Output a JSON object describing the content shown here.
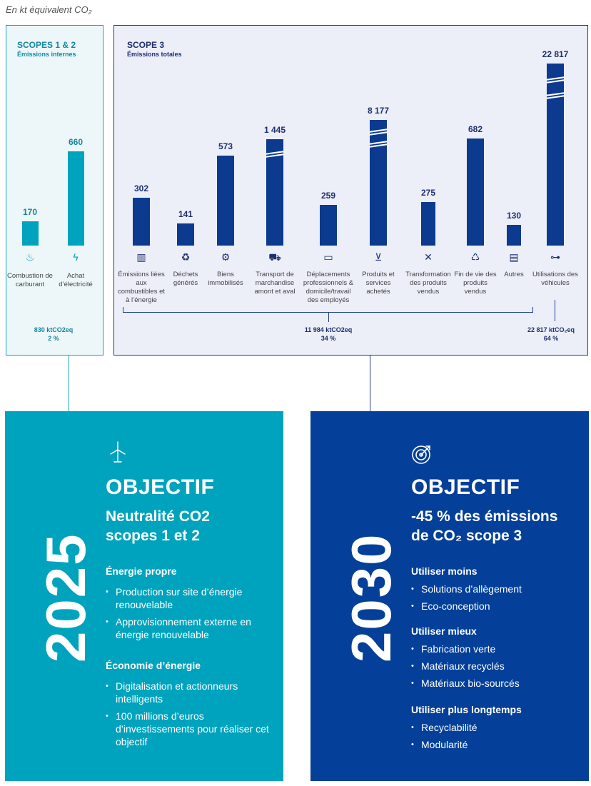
{
  "unit_label": "En kt équivalent CO₂",
  "scope12": {
    "title": "SCOPES 1 & 2",
    "subtitle": "Émissions internes",
    "total_value": "830 ktCO2eq",
    "total_pct": "2 %"
  },
  "scope3": {
    "title": "SCOPE 3",
    "subtitle": "Émissions totales",
    "total_left_value": "11 984 ktCO2eq",
    "total_left_pct": "34 %",
    "total_right_value": "22 817 ktCO₂eq",
    "total_right_pct": "64 %"
  },
  "colors": {
    "scope12_bar": "#00a3bd",
    "scope3_bar": "#0b3a8f",
    "box2025": "#00a3bd",
    "box2030": "#044099"
  },
  "chart_data": [
    {
      "type": "bar",
      "title": "SCOPES 1 & 2",
      "categories": [
        "Combustion de carburant",
        "Achat d’électricité"
      ],
      "values": [
        170,
        660
      ],
      "value_labels": [
        "170",
        "660"
      ],
      "icons": [
        "flame-icon",
        "lightning-icon"
      ],
      "ylim": [
        0,
        700
      ],
      "grid": false
    },
    {
      "type": "bar",
      "title": "SCOPE 3",
      "categories": [
        "Émissions liées aux combustibles et à l’énergie",
        "Déchets générés",
        "Biens immobilisés",
        "Transport de marchandise amont et aval",
        "Déplacements professionnels & domicile/travail des employés",
        "Produits et services achetés",
        "Transformation des produits vendus",
        "Fin de vie des produits vendus",
        "Autres",
        "Utilisations des véhicules"
      ],
      "values": [
        302,
        141,
        573,
        1445,
        259,
        8177,
        275,
        682,
        130,
        22817
      ],
      "value_labels": [
        "302",
        "141",
        "573",
        "1 445",
        "259",
        "8 177",
        "275",
        "682",
        "130",
        "22 817"
      ],
      "broken_axis": [
        false,
        false,
        false,
        true,
        false,
        true,
        false,
        false,
        false,
        true
      ],
      "icons": [
        "factory-icon",
        "trash-bin-icon",
        "robot-arm-icon",
        "truck-icon",
        "bus-icon",
        "shopping-cart-icon",
        "tools-icon",
        "recycle-icon",
        "money-icon",
        "car-icon"
      ],
      "grid": false
    }
  ],
  "obj2025": {
    "year": "2025",
    "label": "OBJECTIF",
    "title_line1": "Neutralité CO2",
    "title_line2": "scopes 1 et 2",
    "sections": [
      {
        "title": "Énergie propre",
        "items": [
          "Production sur site d’énergie renouvelable",
          "Approvisionnement externe en énergie renouvelable"
        ]
      },
      {
        "title": "Économie d’énergie",
        "items": [
          "Digitalisation et actionneurs intelligents",
          "100 millions d’euros d’investissements pour réaliser cet objectif"
        ]
      }
    ]
  },
  "obj2030": {
    "year": "2030",
    "label": "OBJECTIF",
    "title_line1": "-45 % des émissions",
    "title_line2": "de CO₂ scope 3",
    "sections": [
      {
        "title": "Utiliser moins",
        "items": [
          "Solutions d’allègement",
          "Eco-conception"
        ]
      },
      {
        "title": "Utiliser mieux",
        "items": [
          "Fabrication verte",
          "Matériaux recyclés",
          "Matériaux bio-sourcés"
        ]
      },
      {
        "title": "Utiliser plus longtemps",
        "items": [
          "Recyclabilité",
          "Modularité"
        ]
      }
    ]
  }
}
